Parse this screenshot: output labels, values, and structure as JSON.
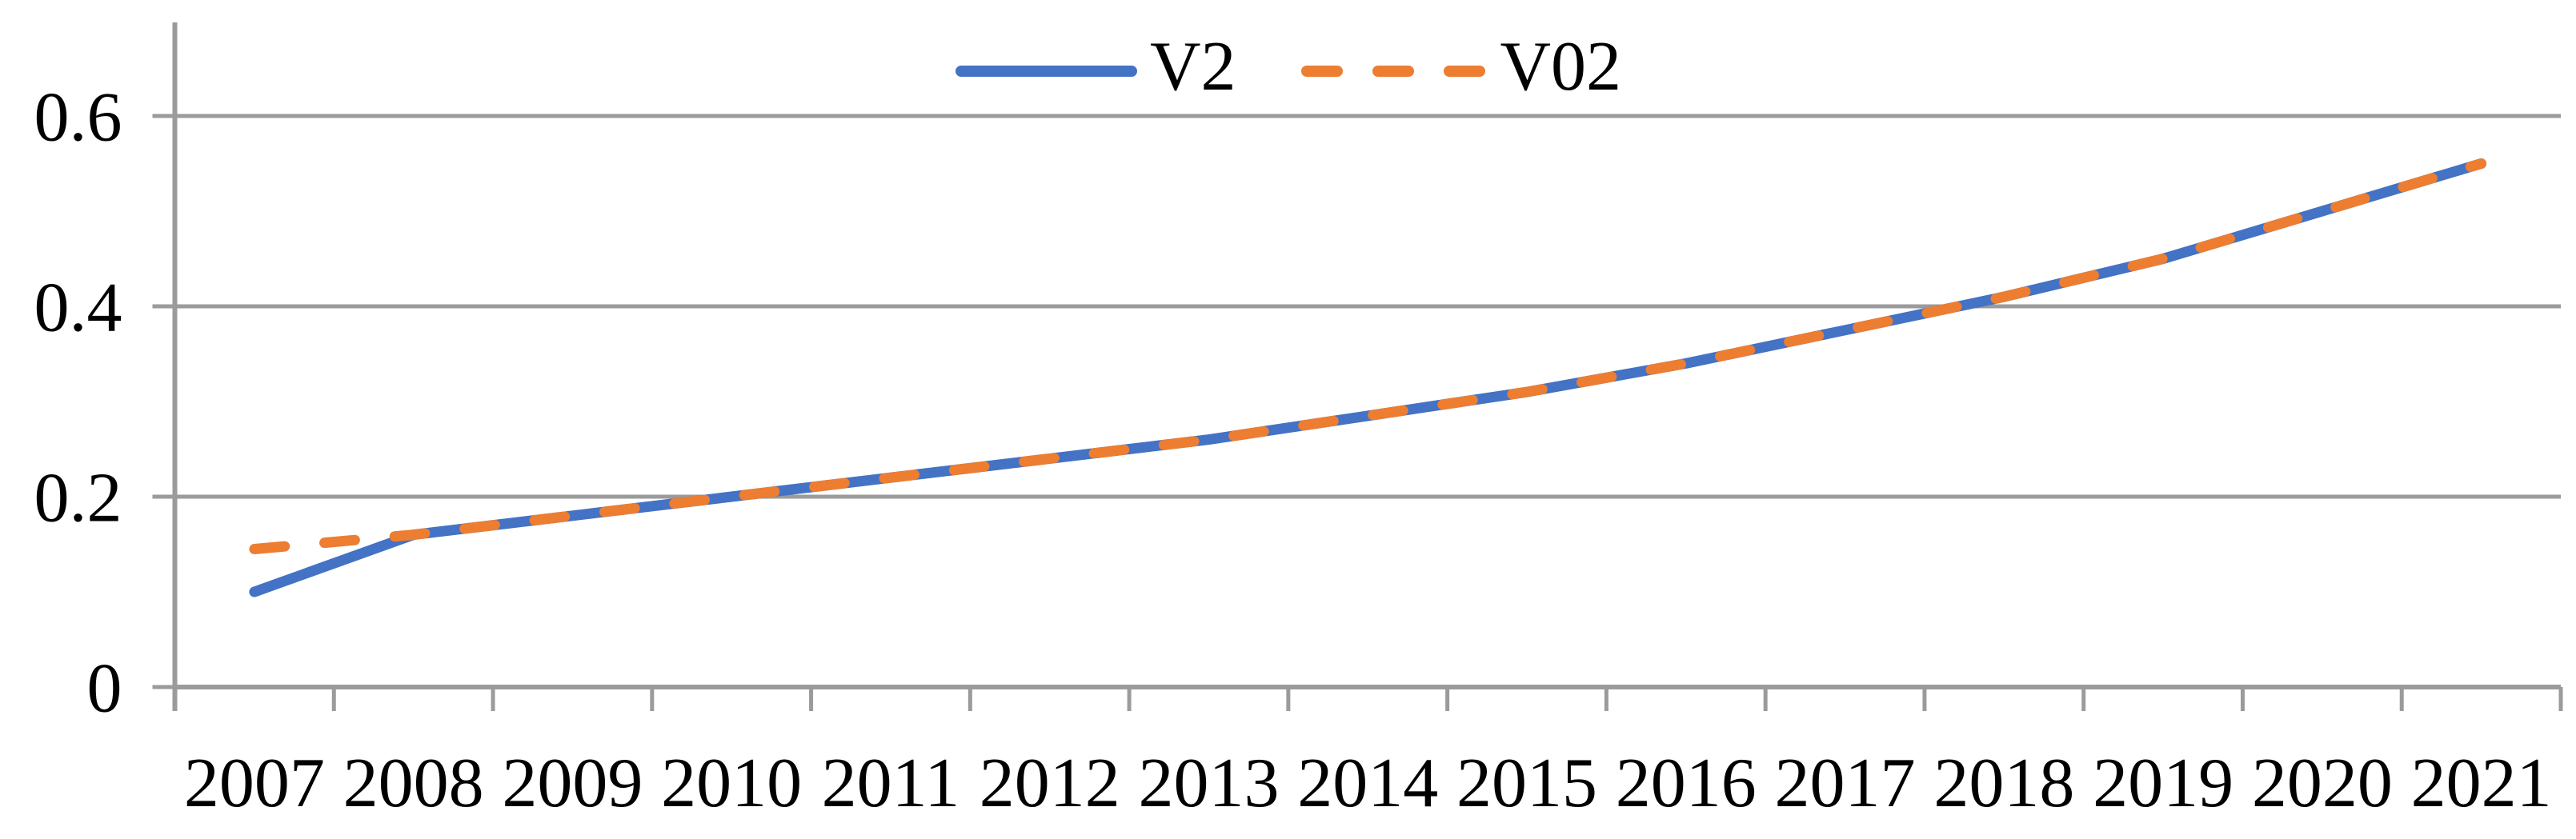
{
  "chart_data": {
    "type": "line",
    "title": "",
    "xlabel": "",
    "ylabel": "",
    "categories": [
      "2007",
      "2008",
      "2009",
      "2010",
      "2011",
      "2012",
      "2013",
      "2014",
      "2015",
      "2016",
      "2017",
      "2018",
      "2019",
      "2020",
      "2021"
    ],
    "series": [
      {
        "name": "V2",
        "style": "solid",
        "color": "#4472C4",
        "values": [
          0.1,
          0.16,
          0.18,
          0.2,
          0.22,
          0.24,
          0.26,
          0.285,
          0.31,
          0.34,
          0.375,
          0.41,
          0.45,
          0.5,
          0.55
        ]
      },
      {
        "name": "V02",
        "style": "dashed",
        "color": "#ED7D31",
        "values": [
          0.145,
          0.16,
          0.18,
          0.2,
          0.22,
          0.24,
          0.26,
          0.285,
          0.31,
          0.34,
          0.375,
          0.41,
          0.45,
          0.5,
          0.55
        ]
      }
    ],
    "ylim": [
      0,
      0.7
    ],
    "yticks": [
      0,
      0.2,
      0.4,
      0.6
    ],
    "ytick_labels": [
      "0",
      "0.2",
      "0.4",
      "0.6"
    ],
    "grid": "horizontal",
    "legend": {
      "position": "top-center"
    },
    "colors": {
      "grid": "#9B9B9B",
      "axis": "#9B9B9B",
      "text": "#000000",
      "background": "#FFFFFF"
    }
  }
}
